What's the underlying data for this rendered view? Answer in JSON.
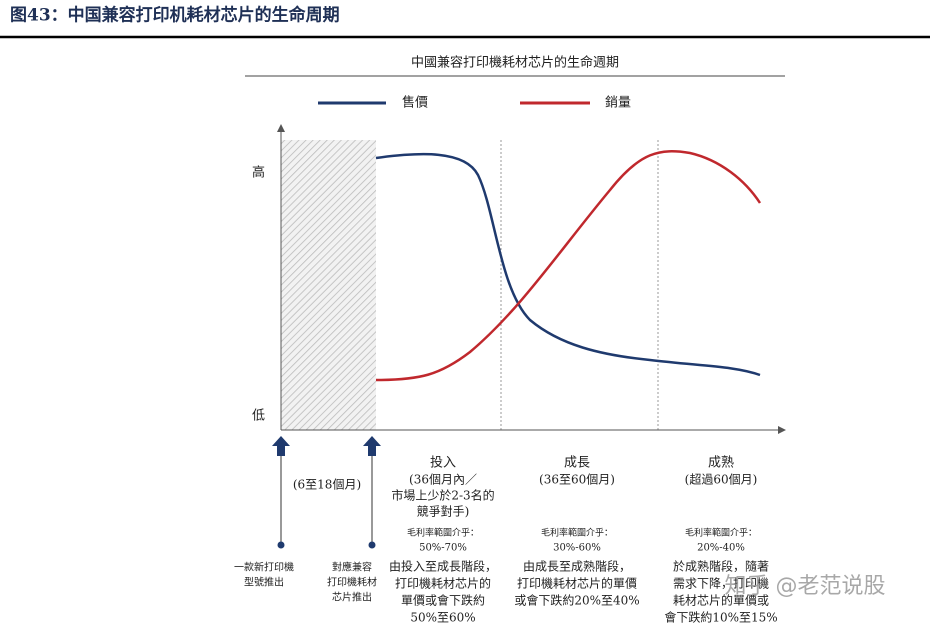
{
  "header": {
    "title": "图43：中国兼容打印机耗材芯片的生命周期"
  },
  "diagram": {
    "title": "中國兼容打印機耗材芯片的生命週期",
    "legend": [
      "售價",
      "銷量"
    ],
    "y_labels": {
      "high": "高",
      "low": "低"
    },
    "pre_phase": "(6至18個月)",
    "milestones": [
      {
        "lines": [
          "一款新打印機",
          "型號推出"
        ]
      },
      {
        "lines": [
          "對應兼容",
          "打印機耗材",
          "芯片推出"
        ]
      }
    ],
    "phases": [
      {
        "name": "投入",
        "duration": [
          "(36個月內／",
          "市場上少於2-3名的",
          "競爭對手)"
        ],
        "margin_label": "毛利率範圍介乎：",
        "margin": "50%-70%",
        "desc": [
          "由投入至成長階段，",
          "打印機耗材芯片的",
          "單價或會下跌約",
          "50%至60%"
        ]
      },
      {
        "name": "成長",
        "duration": [
          "(36至60個月)"
        ],
        "margin_label": "毛利率範圍介乎：",
        "margin": "30%-60%",
        "desc": [
          "由成長至成熟階段，",
          "打印機耗材芯片的單價",
          "或會下跌約20%至40%"
        ]
      },
      {
        "name": "成熟",
        "duration": [
          "(超過60個月)"
        ],
        "margin_label": "毛利率範圍介乎：",
        "margin": "20%-40%",
        "desc": [
          "於成熟階段，隨著",
          "需求下降，打印機",
          "耗材芯片的單價或",
          "會下跌約10%至15%"
        ]
      }
    ]
  },
  "watermark": "知乎 @老范说股"
}
